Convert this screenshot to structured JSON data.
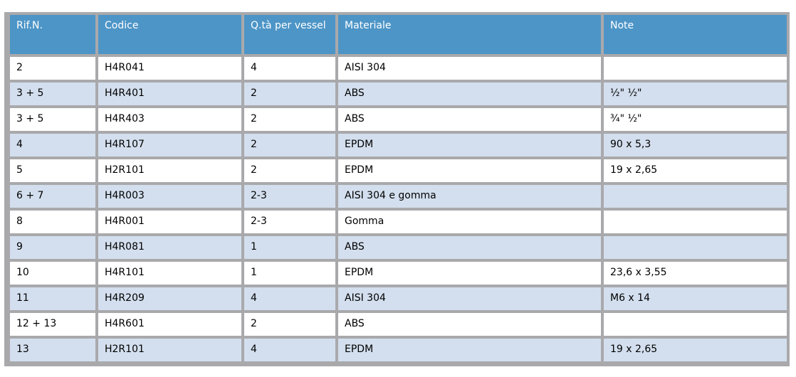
{
  "colors": {
    "header_bg": "#4d95c7",
    "header_text": "#ffffff",
    "row_bg": "#ffffff",
    "row_alt_bg": "#d3dfee",
    "grid": "#a9a9ac",
    "cell_text": "#000000",
    "page_bg": "#ffffff"
  },
  "table": {
    "columns": [
      "Rif.N.",
      "Codice",
      "Q.tà per vessel",
      "Materiale",
      "Note"
    ],
    "rows": [
      [
        "2",
        "H4R041",
        "4",
        "AISI 304",
        ""
      ],
      [
        "3 + 5",
        "H4R401",
        "2",
        "ABS",
        "½\" ½\""
      ],
      [
        "3 + 5",
        "H4R403",
        "2",
        "ABS",
        "¾\" ½\""
      ],
      [
        "4",
        "H4R107",
        "2",
        "EPDM",
        "90 x 5,3"
      ],
      [
        "5",
        "H2R101",
        "2",
        "EPDM",
        "19 x 2,65"
      ],
      [
        "6 + 7",
        "H4R003",
        "2-3",
        "AISI 304 e gomma",
        ""
      ],
      [
        "8",
        "H4R001",
        "2-3",
        "Gomma",
        ""
      ],
      [
        "9",
        "H4R081",
        "1",
        "ABS",
        ""
      ],
      [
        "10",
        "H4R101",
        "1",
        "EPDM",
        "23,6 x 3,55"
      ],
      [
        "11",
        "H4R209",
        "4",
        "AISI 304",
        "M6 x 14"
      ],
      [
        "12 + 13",
        "H4R601",
        "2",
        "ABS",
        ""
      ],
      [
        "13",
        "H2R101",
        "4",
        "EPDM",
        "19 x 2,65"
      ]
    ]
  }
}
